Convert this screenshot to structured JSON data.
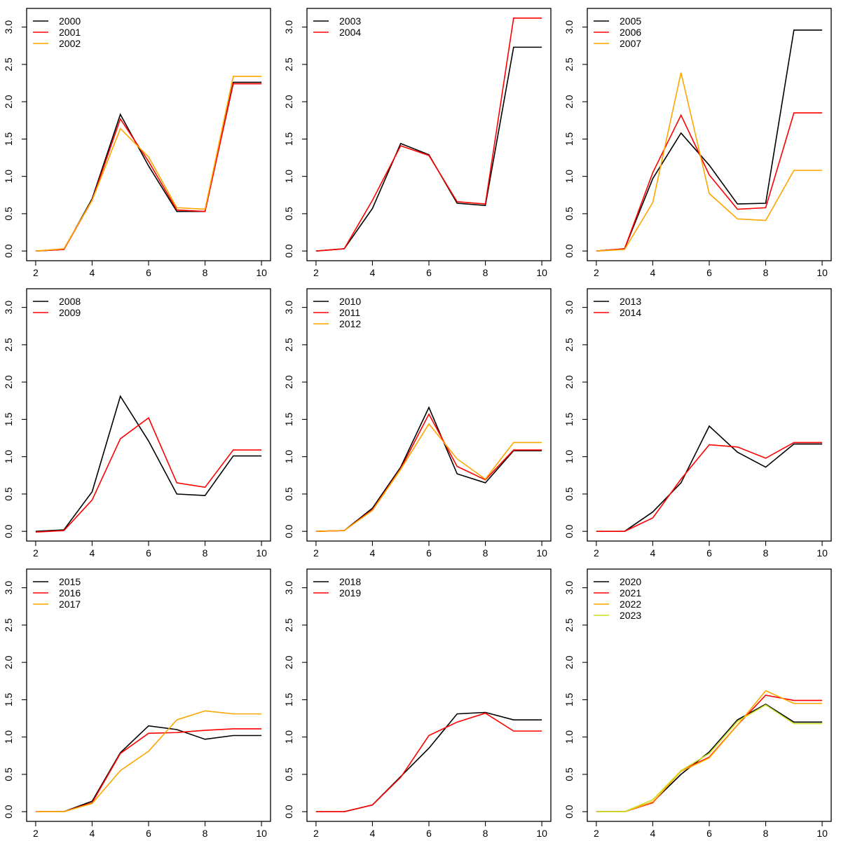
{
  "page": {
    "background": "#FFFFFF",
    "description": "3x3 grid of R-style line charts comparing yearly curves 2000-2023"
  },
  "axes": {
    "x": [
      2,
      3,
      4,
      5,
      6,
      7,
      8,
      9,
      10
    ],
    "xticks": [
      2,
      4,
      6,
      8,
      10
    ],
    "xtick_labels": [
      "2",
      "4",
      "6",
      "8",
      "10"
    ],
    "yticks": [
      0.0,
      0.5,
      1.0,
      1.5,
      2.0,
      2.5,
      3.0
    ],
    "ytick_labels": [
      "0.0",
      "0.5",
      "1.0",
      "1.5",
      "2.0",
      "2.5",
      "3.0"
    ],
    "xlim": [
      1.68,
      10.32
    ],
    "ylim": [
      -0.13,
      3.25
    ],
    "grid": false,
    "legend_position": "topleft",
    "axis_color": "#000000"
  },
  "palette": {
    "black": "#000000",
    "red": "#FF0000",
    "orange": "#FFA500",
    "yellow": "#CCE022"
  },
  "chart_data": [
    {
      "type": "line",
      "series": [
        {
          "name": "2000",
          "color": "#000000",
          "values": [
            0.0,
            0.02,
            0.7,
            1.83,
            1.14,
            0.53,
            0.53,
            2.26,
            2.26
          ]
        },
        {
          "name": "2001",
          "color": "#FF0000",
          "values": [
            0.0,
            0.02,
            0.68,
            1.77,
            1.2,
            0.55,
            0.53,
            2.24,
            2.24
          ]
        },
        {
          "name": "2002",
          "color": "#FFA500",
          "values": [
            0.0,
            0.03,
            0.68,
            1.64,
            1.26,
            0.58,
            0.56,
            2.34,
            2.34
          ]
        }
      ]
    },
    {
      "type": "line",
      "series": [
        {
          "name": "2003",
          "color": "#000000",
          "values": [
            0.0,
            0.03,
            0.57,
            1.44,
            1.29,
            0.64,
            0.61,
            2.73,
            2.73
          ]
        },
        {
          "name": "2004",
          "color": "#FF0000",
          "values": [
            0.0,
            0.03,
            0.68,
            1.41,
            1.28,
            0.66,
            0.63,
            3.12,
            3.12
          ]
        }
      ]
    },
    {
      "type": "line",
      "series": [
        {
          "name": "2005",
          "color": "#000000",
          "values": [
            0.0,
            0.03,
            0.97,
            1.58,
            1.15,
            0.63,
            0.64,
            2.96,
            2.96
          ]
        },
        {
          "name": "2006",
          "color": "#FF0000",
          "values": [
            0.0,
            0.03,
            1.05,
            1.82,
            1.02,
            0.56,
            0.58,
            1.85,
            1.85
          ]
        },
        {
          "name": "2007",
          "color": "#FFA500",
          "values": [
            0.0,
            0.02,
            0.65,
            2.39,
            0.77,
            0.43,
            0.41,
            1.08,
            1.08
          ]
        }
      ]
    },
    {
      "type": "line",
      "series": [
        {
          "name": "2008",
          "color": "#000000",
          "values": [
            0.0,
            0.02,
            0.53,
            1.81,
            1.21,
            0.5,
            0.48,
            1.01,
            1.01
          ]
        },
        {
          "name": "2009",
          "color": "#FF0000",
          "values": [
            -0.01,
            0.01,
            0.42,
            1.24,
            1.52,
            0.65,
            0.59,
            1.09,
            1.09
          ]
        }
      ]
    },
    {
      "type": "line",
      "series": [
        {
          "name": "2010",
          "color": "#000000",
          "values": [
            0.0,
            0.01,
            0.31,
            0.86,
            1.66,
            0.77,
            0.65,
            1.08,
            1.08
          ]
        },
        {
          "name": "2011",
          "color": "#FF0000",
          "values": [
            0.0,
            0.01,
            0.29,
            0.84,
            1.57,
            0.87,
            0.69,
            1.09,
            1.09
          ]
        },
        {
          "name": "2012",
          "color": "#FFA500",
          "values": [
            0.0,
            0.01,
            0.28,
            0.83,
            1.44,
            0.97,
            0.7,
            1.19,
            1.19
          ]
        }
      ]
    },
    {
      "type": "line",
      "series": [
        {
          "name": "2013",
          "color": "#000000",
          "values": [
            0.0,
            0.0,
            0.26,
            0.65,
            1.41,
            1.06,
            0.86,
            1.17,
            1.17
          ]
        },
        {
          "name": "2014",
          "color": "#FF0000",
          "values": [
            0.0,
            0.0,
            0.18,
            0.7,
            1.16,
            1.13,
            0.98,
            1.19,
            1.19
          ]
        }
      ]
    },
    {
      "type": "line",
      "series": [
        {
          "name": "2015",
          "color": "#000000",
          "values": [
            0.0,
            0.0,
            0.14,
            0.79,
            1.15,
            1.1,
            0.97,
            1.02,
            1.02
          ]
        },
        {
          "name": "2016",
          "color": "#FF0000",
          "values": [
            0.0,
            0.0,
            0.12,
            0.78,
            1.05,
            1.06,
            1.09,
            1.11,
            1.11
          ]
        },
        {
          "name": "2017",
          "color": "#FFA500",
          "values": [
            0.0,
            0.0,
            0.11,
            0.55,
            0.81,
            1.23,
            1.35,
            1.31,
            1.31
          ]
        }
      ]
    },
    {
      "type": "line",
      "series": [
        {
          "name": "2018",
          "color": "#000000",
          "values": [
            0.0,
            0.0,
            0.09,
            0.47,
            0.85,
            1.31,
            1.33,
            1.23,
            1.23
          ]
        },
        {
          "name": "2019",
          "color": "#FF0000",
          "values": [
            0.0,
            0.0,
            0.09,
            0.46,
            1.02,
            1.2,
            1.32,
            1.08,
            1.08
          ]
        }
      ]
    },
    {
      "type": "line",
      "series": [
        {
          "name": "2020",
          "color": "#000000",
          "values": [
            0.0,
            0.0,
            0.13,
            0.5,
            0.8,
            1.23,
            1.44,
            1.2,
            1.2
          ]
        },
        {
          "name": "2021",
          "color": "#FF0000",
          "values": [
            0.0,
            0.0,
            0.12,
            0.55,
            0.73,
            1.16,
            1.56,
            1.49,
            1.49
          ]
        },
        {
          "name": "2022",
          "color": "#FFA500",
          "values": [
            0.0,
            0.0,
            0.13,
            0.54,
            0.72,
            1.16,
            1.62,
            1.45,
            1.45
          ]
        },
        {
          "name": "2023",
          "color": "#CCE022",
          "values": [
            0.0,
            0.0,
            0.16,
            0.55,
            0.78,
            1.21,
            1.43,
            1.18,
            1.18
          ]
        }
      ]
    }
  ]
}
